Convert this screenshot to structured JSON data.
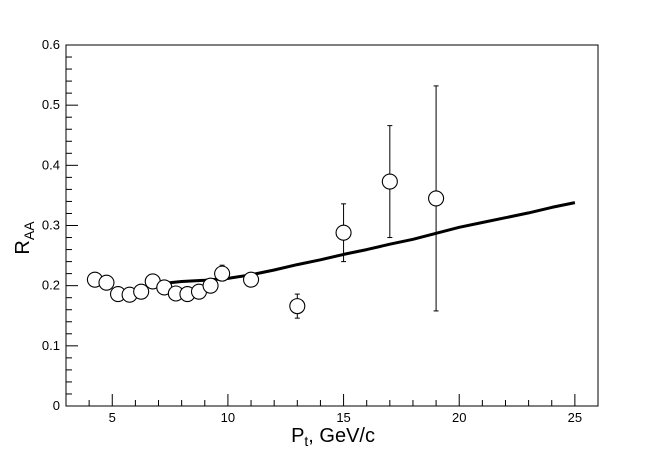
{
  "chart_data": {
    "type": "scatter",
    "xlabel": {
      "main": "P",
      "sub": "t",
      "rest": ", GeV/c"
    },
    "ylabel": {
      "main": "R",
      "sub": "AA"
    },
    "xlim": [
      3,
      26
    ],
    "ylim": [
      0,
      0.6
    ],
    "x_ticks": [
      5,
      10,
      15,
      20,
      25
    ],
    "x_tick_labels": [
      "5",
      "10",
      "15",
      "20",
      "25"
    ],
    "y_ticks": [
      0,
      0.1,
      0.2,
      0.3,
      0.4,
      0.5,
      0.6
    ],
    "y_tick_labels": [
      "0",
      "0.1",
      "0.2",
      "0.3",
      "0.4",
      "0.5",
      "0.6"
    ],
    "grid": false,
    "legend": "none",
    "series": [
      {
        "type": "scatter",
        "marker": "open-circle",
        "points": [
          {
            "x": 4.25,
            "y": 0.21
          },
          {
            "x": 4.75,
            "y": 0.205
          },
          {
            "x": 5.25,
            "y": 0.186
          },
          {
            "x": 5.75,
            "y": 0.185
          },
          {
            "x": 6.25,
            "y": 0.19
          },
          {
            "x": 6.75,
            "y": 0.207
          },
          {
            "x": 7.25,
            "y": 0.197
          },
          {
            "x": 7.75,
            "y": 0.187
          },
          {
            "x": 8.25,
            "y": 0.186
          },
          {
            "x": 8.75,
            "y": 0.19
          },
          {
            "x": 9.25,
            "y": 0.2
          },
          {
            "x": 9.75,
            "y": 0.22,
            "err_lo": 0.01,
            "err_hi": 0.014
          },
          {
            "x": 11.0,
            "y": 0.21
          },
          {
            "x": 13.0,
            "y": 0.166,
            "err_lo": 0.02,
            "err_hi": 0.02
          },
          {
            "x": 15.0,
            "y": 0.288,
            "err_lo": 0.048,
            "err_hi": 0.048
          },
          {
            "x": 17.0,
            "y": 0.373,
            "err_lo": 0.093,
            "err_hi": 0.093
          },
          {
            "x": 19.0,
            "y": 0.345,
            "err_lo": 0.187,
            "err_hi": 0.187
          }
        ]
      },
      {
        "type": "line",
        "points": [
          {
            "x": 7.0,
            "y": 0.203
          },
          {
            "x": 8.0,
            "y": 0.207
          },
          {
            "x": 9.0,
            "y": 0.209
          },
          {
            "x": 10.0,
            "y": 0.212
          },
          {
            "x": 11.0,
            "y": 0.218
          },
          {
            "x": 12.0,
            "y": 0.226
          },
          {
            "x": 13.0,
            "y": 0.235
          },
          {
            "x": 14.0,
            "y": 0.243
          },
          {
            "x": 15.0,
            "y": 0.252
          },
          {
            "x": 16.0,
            "y": 0.26
          },
          {
            "x": 17.0,
            "y": 0.269
          },
          {
            "x": 18.0,
            "y": 0.277
          },
          {
            "x": 19.0,
            "y": 0.287
          },
          {
            "x": 20.0,
            "y": 0.297
          },
          {
            "x": 21.0,
            "y": 0.305
          },
          {
            "x": 22.0,
            "y": 0.313
          },
          {
            "x": 23.0,
            "y": 0.321
          },
          {
            "x": 24.0,
            "y": 0.33
          },
          {
            "x": 25.0,
            "y": 0.338
          }
        ]
      }
    ]
  }
}
